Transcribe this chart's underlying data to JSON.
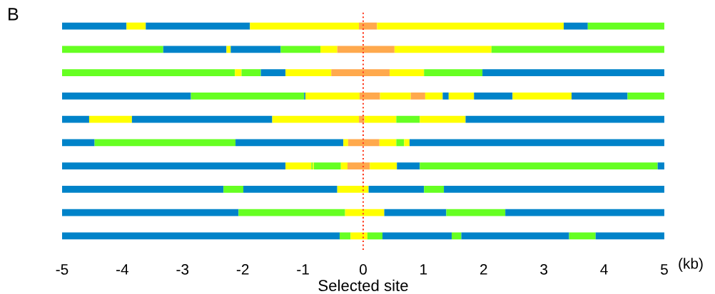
{
  "chart_data": {
    "type": "bar",
    "orientation": "horizontal",
    "title": "B",
    "xlabel": "Selected site",
    "annotations": [
      "(kb)"
    ],
    "categories": [
      null,
      null,
      null,
      null,
      null,
      null,
      null,
      null,
      null,
      null
    ],
    "series": [
      {
        "base": [
          -5,
          -5,
          -5,
          -5,
          -5,
          -5,
          -5,
          -5,
          -5,
          -5
        ],
        "values": [
          1.07,
          1.68,
          2.87,
          2.14,
          0.45,
          0.54,
          3.71,
          2.68,
          2.93,
          4.61
        ],
        "colors": [
          "#0083c9",
          "#66ff22",
          "#66ff22",
          "#0083c9",
          "#0083c9",
          "#0083c9",
          "#0083c9",
          "#0083c9",
          "#0083c9",
          "#0083c9"
        ]
      },
      {
        "base": [
          -3.93,
          -3.32,
          -2.13,
          -2.86,
          -4.55,
          -4.46,
          -1.29,
          -2.32,
          -2.07,
          -0.39
        ],
        "values": [
          0.32,
          1.05,
          0.11,
          1.88,
          0.71,
          2.34,
          0.43,
          0.33,
          1.77,
          0.18
        ],
        "colors": [
          "#ffff00",
          "#0083c9",
          "#ffff00",
          "#66ff22",
          "#ffff00",
          "#66ff22",
          "#ffff00",
          "#66ff22",
          "#66ff22",
          "#66ff22"
        ]
      },
      {
        "base": [
          -3.61,
          -2.27,
          -2.02,
          -0.98,
          -3.84,
          -2.12,
          -0.86,
          -1.99,
          -0.3,
          -0.21
        ],
        "values": [
          1.73,
          0.07,
          0.32,
          0.02,
          2.33,
          1.79,
          0.02,
          1.56,
          0.65,
          0.28
        ],
        "colors": [
          "#0083c9",
          "#ffff00",
          "#66ff22",
          "#0083c9",
          "#0083c9",
          "#0083c9",
          "#66ff22",
          "#0083c9",
          "#ffff00",
          "#ffff00"
        ]
      },
      {
        "base": [
          -1.88,
          -2.2,
          -1.7,
          -0.96,
          -1.51,
          -0.33,
          -0.84,
          -0.43,
          0.35,
          0.07
        ],
        "values": [
          1.81,
          0.83,
          0.41,
          0.9,
          1.44,
          0.08,
          0.02,
          0.52,
          1.03,
          0.25
        ],
        "colors": [
          "#ffff00",
          "#0083c9",
          "#0083c9",
          "#ffff00",
          "#ffff00",
          "#ffff00",
          "#ffff00",
          "#ffff00",
          "#0083c9",
          "#66ff22"
        ]
      },
      {
        "base": [
          -0.07,
          -1.37,
          -1.29,
          -0.06,
          -0.07,
          -0.25,
          -0.82,
          0.09,
          1.38,
          0.32
        ],
        "values": [
          0.3,
          0.66,
          0.76,
          0.34,
          0.09,
          0.52,
          0.45,
          0.92,
          0.98,
          1.15
        ],
        "colors": [
          "#ffa94d",
          "#66ff22",
          "#ffff00",
          "#ffa94d",
          "#ffa94d",
          "#ffa94d",
          "#66ff22",
          "#0083c9",
          "#66ff22",
          "#0083c9"
        ]
      },
      {
        "base": [
          0.23,
          -0.71,
          -0.53,
          0.28,
          0.02,
          0.27,
          -0.37,
          1.01,
          2.36,
          1.47
        ],
        "values": [
          3.1,
          0.28,
          0.97,
          0.51,
          0.53,
          0.28,
          0.11,
          0.33,
          2.64,
          0.16
        ],
        "colors": [
          "#ffff00",
          "#ffff00",
          "#ffa94d",
          "#ffff00",
          "#ffff00",
          "#ffff00",
          "#ffff00",
          "#66ff22",
          "#0083c9",
          "#66ff22"
        ]
      },
      {
        "base": [
          3.33,
          -0.43,
          0.44,
          0.79,
          0.55,
          0.55,
          -0.26,
          1.34,
          null,
          1.63
        ],
        "values": [
          0.4,
          0.95,
          0.57,
          0.24,
          0.39,
          0.13,
          0.37,
          3.66,
          null,
          1.79
        ],
        "colors": [
          "#0083c9",
          "#ffa94d",
          "#ffff00",
          "#ffa94d",
          "#66ff22",
          "#66ff22",
          "#ffa94d",
          "#0083c9",
          null,
          "#0083c9"
        ]
      },
      {
        "base": [
          3.73,
          0.52,
          1.01,
          1.03,
          0.94,
          0.68,
          0.11,
          null,
          null,
          3.42
        ],
        "values": [
          1.27,
          1.61,
          0.97,
          0.29,
          0.76,
          0.09,
          0.45,
          null,
          null,
          0.44
        ],
        "colors": [
          "#66ff22",
          "#ffff00",
          "#66ff22",
          "#ffff00",
          "#ffff00",
          "#ffff00",
          "#ffff00",
          null,
          null,
          "#66ff22"
        ]
      },
      {
        "base": [
          null,
          2.13,
          1.98,
          1.32,
          1.7,
          0.77,
          0.56,
          null,
          null,
          3.86
        ],
        "values": [
          null,
          2.87,
          3.02,
          0.1,
          3.3,
          4.23,
          0.38,
          null,
          null,
          1.14
        ],
        "colors": [
          null,
          "#66ff22",
          "#0083c9",
          "#0083c9",
          "#0083c9",
          "#0083c9",
          "#0083c9",
          null,
          null,
          "#0083c9"
        ]
      },
      {
        "base": [
          null,
          null,
          null,
          1.42,
          null,
          null,
          0.94,
          null,
          null,
          null
        ],
        "values": [
          null,
          null,
          null,
          0.42,
          null,
          null,
          3.95,
          null,
          null,
          null
        ],
        "colors": [
          null,
          null,
          null,
          "#ffff00",
          null,
          null,
          "#66ff22",
          null,
          null,
          null
        ]
      },
      {
        "base": [
          null,
          null,
          null,
          1.84,
          null,
          null,
          4.89,
          null,
          null,
          null
        ],
        "values": [
          null,
          null,
          null,
          0.64,
          null,
          null,
          0.11,
          null,
          null,
          null
        ],
        "colors": [
          null,
          null,
          null,
          "#0083c9",
          null,
          null,
          "#0083c9",
          null,
          null,
          null
        ]
      },
      {
        "base": [
          null,
          null,
          null,
          2.48,
          null,
          null,
          null,
          null,
          null,
          null
        ],
        "values": [
          null,
          null,
          null,
          0.98,
          null,
          null,
          null,
          null,
          null,
          null
        ],
        "colors": [
          null,
          null,
          null,
          "#ffff00",
          null,
          null,
          null,
          null,
          null,
          null
        ]
      },
      {
        "base": [
          null,
          null,
          null,
          3.46,
          null,
          null,
          null,
          null,
          null,
          null
        ],
        "values": [
          null,
          null,
          null,
          0.93,
          null,
          null,
          null,
          null,
          null,
          null
        ],
        "colors": [
          null,
          null,
          null,
          "#0083c9",
          null,
          null,
          null,
          null,
          null,
          null
        ]
      },
      {
        "base": [
          null,
          null,
          null,
          4.39,
          null,
          null,
          null,
          null,
          null,
          null
        ],
        "values": [
          null,
          null,
          null,
          0.61,
          null,
          null,
          null,
          null,
          null,
          null
        ],
        "colors": [
          null,
          null,
          null,
          "#66ff22",
          null,
          null,
          null,
          null,
          null,
          null
        ]
      }
    ],
    "xlim": [
      -5,
      5
    ],
    "xticks": [
      -5,
      -4,
      -3,
      -2,
      -1,
      0,
      1,
      2,
      3,
      4,
      5
    ],
    "ref_lines": [
      {
        "axis": "x",
        "value": 0,
        "color": "#ff3b1f",
        "line_style": "dotted"
      }
    ],
    "tick_labels": "x",
    "grid": false,
    "legend": false
  }
}
